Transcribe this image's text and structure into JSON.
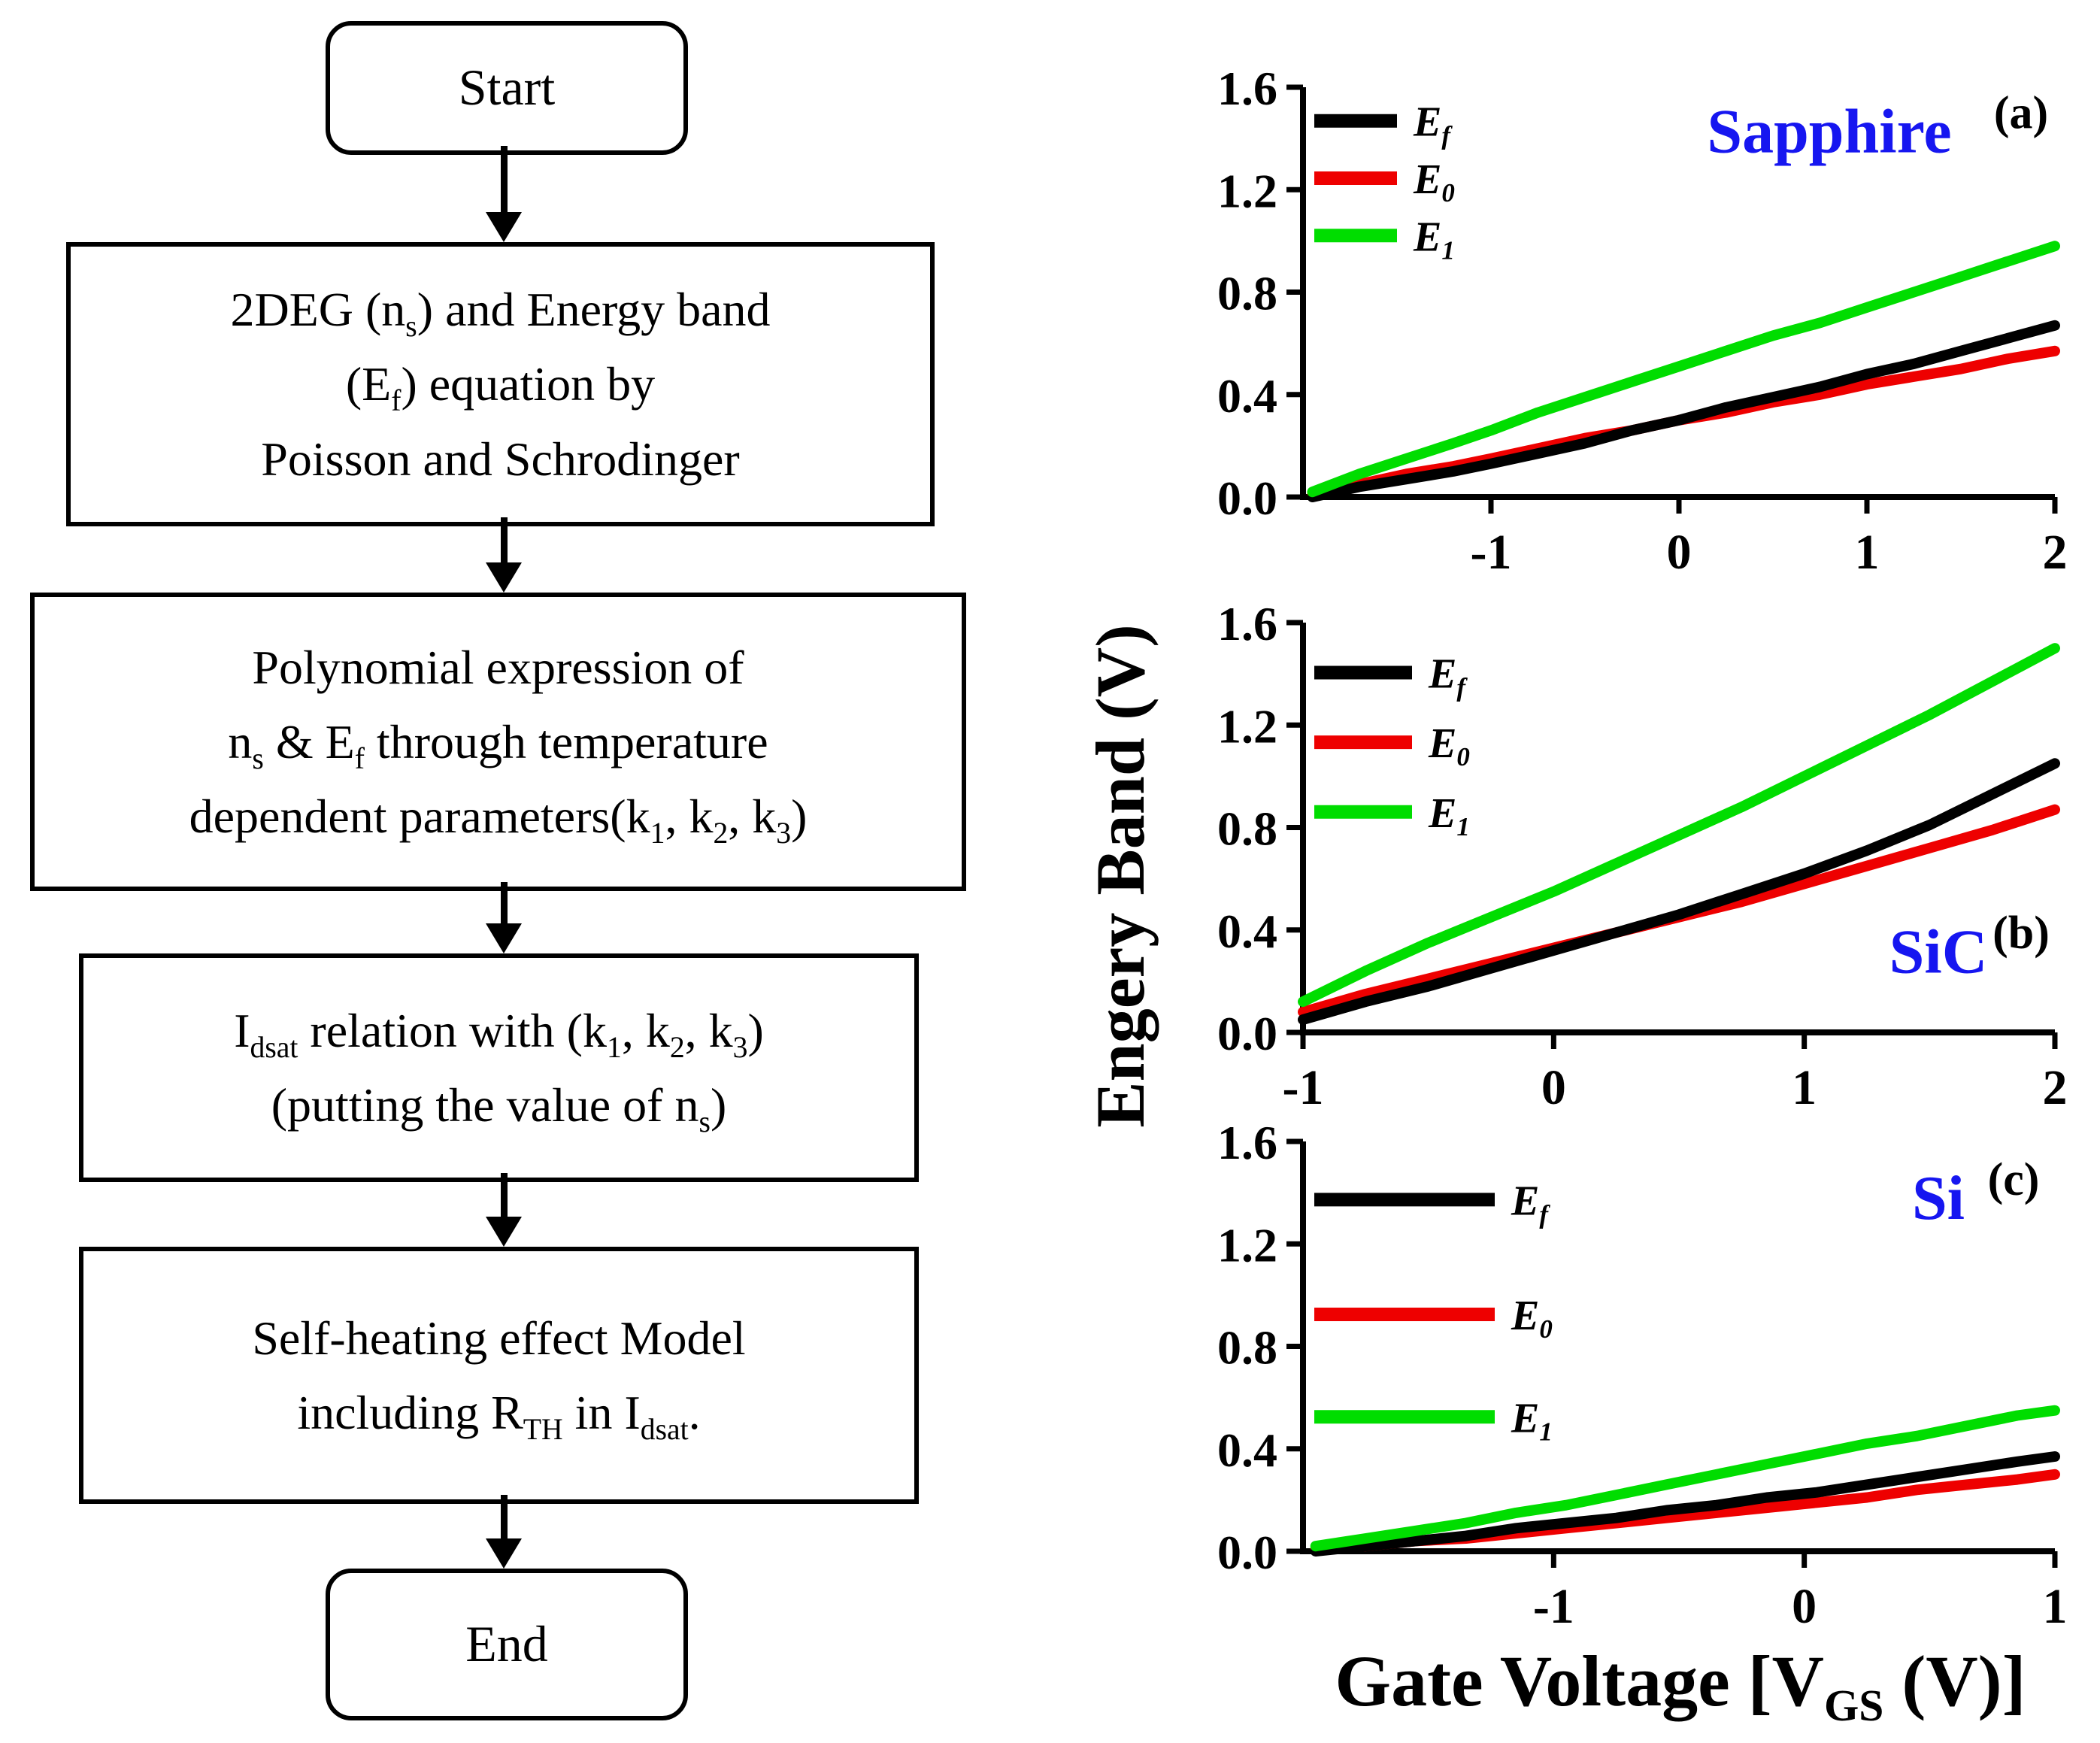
{
  "figure": {
    "flowchart": {
      "nodes": [
        {
          "id": "start",
          "shape": "rounded",
          "label": "Start"
        },
        {
          "id": "step1",
          "shape": "rect",
          "lines": [
            "2DEG (n{s}) and Energy band",
            "(E{f}) equation by",
            "Poisson and Schrodinger"
          ]
        },
        {
          "id": "step2",
          "shape": "rect",
          "lines": [
            "Polynomial expression of",
            "n{s} & E{f} through temperature",
            "dependent parameters(k{1}, k{2}, k{3})"
          ]
        },
        {
          "id": "step3",
          "shape": "rect",
          "lines": [
            "I{dsat} relation with (k{1}, k{2}, k{3})",
            "(putting the value of n{s})"
          ]
        },
        {
          "id": "step4",
          "shape": "rect",
          "lines": [
            "Self-heating effect Model",
            "including R{TH} in I{dsat}."
          ]
        },
        {
          "id": "end",
          "shape": "rounded",
          "label": "End"
        }
      ]
    },
    "axes": {
      "ylabel": "Engery Band (V)",
      "xlabel": "Gate Voltage [V{GS} (V)]"
    },
    "colors": {
      "curve_black": "#000000",
      "curve_red": "#ee0000",
      "curve_green": "#00dd00",
      "substrate_blue": "#1616f0",
      "panel_letter_black": "#000000"
    }
  },
  "chart_data": [
    {
      "type": "line",
      "substrate": "Sapphire",
      "panel_label": "(a)",
      "xlim": [
        -2,
        2
      ],
      "ylim": [
        0,
        1.6
      ],
      "xticks": [
        -1,
        0,
        1,
        2
      ],
      "yticks": [
        0,
        0.4,
        0.8,
        1.2,
        1.6
      ],
      "ytick_labels": [
        "0.0",
        "0.4",
        "0.8",
        "1.2",
        "1.6"
      ],
      "legend_pos": {
        "fx": 0.015,
        "fy": [
          0.06,
          0.2,
          0.34
        ],
        "swatch": 110
      },
      "labels_pos": {
        "substrate": {
          "fx": 0.7,
          "fy": 0.105,
          "size": 84
        },
        "panel": {
          "fx": 0.955,
          "fy": 0.06,
          "size": 62
        }
      },
      "series": [
        {
          "name": "E{f}",
          "color": "#000000",
          "x": [
            -1.95,
            -1.7,
            -1.45,
            -1.2,
            -1.0,
            -0.75,
            -0.5,
            -0.25,
            0,
            0.25,
            0.5,
            0.75,
            1.0,
            1.25,
            1.5,
            1.75,
            2.0
          ],
          "y": [
            0.0,
            0.04,
            0.07,
            0.1,
            0.13,
            0.17,
            0.21,
            0.26,
            0.3,
            0.35,
            0.39,
            0.43,
            0.48,
            0.52,
            0.57,
            0.62,
            0.67
          ]
        },
        {
          "name": "E{0}",
          "color": "#ee0000",
          "x": [
            -1.95,
            -1.7,
            -1.45,
            -1.2,
            -1.0,
            -0.75,
            -0.5,
            -0.25,
            0,
            0.25,
            0.5,
            0.75,
            1.0,
            1.25,
            1.5,
            1.75,
            2.0
          ],
          "y": [
            0.01,
            0.05,
            0.09,
            0.12,
            0.15,
            0.19,
            0.23,
            0.26,
            0.3,
            0.33,
            0.37,
            0.4,
            0.44,
            0.47,
            0.5,
            0.54,
            0.57
          ]
        },
        {
          "name": "E{1}",
          "color": "#00dd00",
          "x": [
            -1.95,
            -1.7,
            -1.45,
            -1.2,
            -1.0,
            -0.75,
            -0.5,
            -0.25,
            0,
            0.25,
            0.5,
            0.75,
            1.0,
            1.25,
            1.5,
            1.75,
            2.0
          ],
          "y": [
            0.02,
            0.09,
            0.15,
            0.21,
            0.26,
            0.33,
            0.39,
            0.45,
            0.51,
            0.57,
            0.63,
            0.68,
            0.74,
            0.8,
            0.86,
            0.92,
            0.98
          ]
        }
      ]
    },
    {
      "type": "line",
      "substrate": "SiC",
      "panel_label": "(b)",
      "xlim": [
        -1,
        2
      ],
      "ylim": [
        0,
        1.6
      ],
      "xticks": [
        -1,
        0,
        1,
        2
      ],
      "yticks": [
        0,
        0.4,
        0.8,
        1.2,
        1.6
      ],
      "ytick_labels": [
        "0.0",
        "0.4",
        "0.8",
        "1.2",
        "1.6"
      ],
      "legend_pos": {
        "fx": 0.015,
        "fy": [
          0.1,
          0.27,
          0.44
        ],
        "swatch": 130
      },
      "labels_pos": {
        "substrate": {
          "fx": 0.845,
          "fy": 0.8,
          "size": 84
        },
        "panel": {
          "fx": 0.955,
          "fy": 0.755,
          "size": 62
        }
      },
      "series": [
        {
          "name": "E{f}",
          "color": "#000000",
          "x": [
            -1.0,
            -0.75,
            -0.5,
            -0.25,
            0,
            0.25,
            0.5,
            0.75,
            1.0,
            1.25,
            1.5,
            1.75,
            2.0
          ],
          "y": [
            0.05,
            0.12,
            0.18,
            0.25,
            0.32,
            0.39,
            0.46,
            0.54,
            0.62,
            0.71,
            0.81,
            0.93,
            1.05
          ]
        },
        {
          "name": "E{0}",
          "color": "#ee0000",
          "x": [
            -1.0,
            -0.75,
            -0.5,
            -0.25,
            0,
            0.25,
            0.5,
            0.75,
            1.0,
            1.25,
            1.5,
            1.75,
            2.0
          ],
          "y": [
            0.08,
            0.15,
            0.21,
            0.27,
            0.33,
            0.39,
            0.45,
            0.51,
            0.58,
            0.65,
            0.72,
            0.79,
            0.87
          ]
        },
        {
          "name": "E{1}",
          "color": "#00dd00",
          "x": [
            -1.0,
            -0.75,
            -0.5,
            -0.25,
            0,
            0.25,
            0.5,
            0.75,
            1.0,
            1.25,
            1.5,
            1.75,
            2.0
          ],
          "y": [
            0.12,
            0.24,
            0.35,
            0.45,
            0.55,
            0.66,
            0.77,
            0.88,
            1.0,
            1.12,
            1.24,
            1.37,
            1.5
          ]
        }
      ]
    },
    {
      "type": "line",
      "substrate": "Si",
      "panel_label": "(c)",
      "xlim": [
        -2,
        1
      ],
      "ylim": [
        0,
        1.6
      ],
      "xticks": [
        -1,
        0,
        1
      ],
      "yticks": [
        0,
        0.4,
        0.8,
        1.2,
        1.6
      ],
      "ytick_labels": [
        "0.0",
        "0.4",
        "0.8",
        "1.2",
        "1.6"
      ],
      "legend_pos": {
        "fx": 0.015,
        "fy": [
          0.12,
          0.4,
          0.65
        ],
        "swatch": 240
      },
      "labels_pos": {
        "substrate": {
          "fx": 0.845,
          "fy": 0.135,
          "size": 84
        },
        "panel": {
          "fx": 0.945,
          "fy": 0.09,
          "size": 62
        }
      },
      "series": [
        {
          "name": "E{f}",
          "color": "#000000",
          "x": [
            -1.95,
            -1.75,
            -1.55,
            -1.35,
            -1.15,
            -0.95,
            -0.75,
            -0.55,
            -0.35,
            -0.15,
            0.05,
            0.25,
            0.45,
            0.65,
            0.85,
            1.0
          ],
          "y": [
            0.0,
            0.02,
            0.04,
            0.06,
            0.09,
            0.11,
            0.13,
            0.16,
            0.18,
            0.21,
            0.23,
            0.26,
            0.29,
            0.32,
            0.35,
            0.37
          ]
        },
        {
          "name": "E{0}",
          "color": "#ee0000",
          "x": [
            -1.95,
            -1.75,
            -1.55,
            -1.35,
            -1.15,
            -0.95,
            -0.75,
            -0.55,
            -0.35,
            -0.15,
            0.05,
            0.25,
            0.45,
            0.65,
            0.85,
            1.0
          ],
          "y": [
            0.01,
            0.02,
            0.04,
            0.05,
            0.07,
            0.09,
            0.11,
            0.13,
            0.15,
            0.17,
            0.19,
            0.21,
            0.24,
            0.26,
            0.28,
            0.3
          ]
        },
        {
          "name": "E{1}",
          "color": "#00dd00",
          "x": [
            -1.95,
            -1.75,
            -1.55,
            -1.35,
            -1.15,
            -0.95,
            -0.75,
            -0.55,
            -0.35,
            -0.15,
            0.05,
            0.25,
            0.45,
            0.65,
            0.85,
            1.0
          ],
          "y": [
            0.02,
            0.05,
            0.08,
            0.11,
            0.15,
            0.18,
            0.22,
            0.26,
            0.3,
            0.34,
            0.38,
            0.42,
            0.45,
            0.49,
            0.53,
            0.55
          ]
        }
      ]
    }
  ]
}
